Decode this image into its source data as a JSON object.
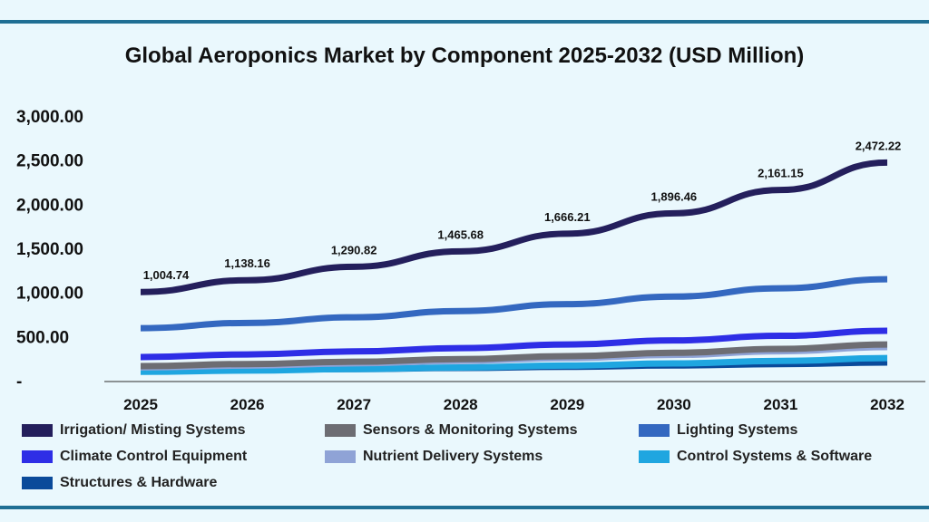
{
  "title": "Global Aeroponics Market by Component 2025-2032 (USD Million)",
  "chart_data": {
    "type": "line",
    "title": "Global Aeroponics Market by Component 2025-2032 (USD Million)",
    "categories": [
      "2025",
      "2026",
      "2027",
      "2028",
      "2029",
      "2030",
      "2031",
      "2032"
    ],
    "yticks": [
      "-",
      "500.00",
      "1,000.00",
      "1,500.00",
      "2,000.00",
      "2,500.00",
      "3,000.00"
    ],
    "ylim": [
      0,
      3000
    ],
    "grid": false,
    "legend": "bottom",
    "series": [
      {
        "name": "Irrigation/ Misting Systems",
        "color": "#241f5c",
        "values": [
          1004.74,
          1138.16,
          1290.82,
          1465.68,
          1666.21,
          1896.46,
          2161.15,
          2472.22
        ],
        "labels": [
          "1,004.74",
          "1,138.16",
          "1,290.82",
          "1,465.68",
          "1,666.21",
          "1,896.46",
          "2,161.15",
          "2,472.22"
        ]
      },
      {
        "name": "Sensors & Monitoring Systems",
        "color": "#6d6d73",
        "values": [
          165,
          188,
          214,
          244,
          278,
          316,
          360,
          410
        ]
      },
      {
        "name": "Lighting Systems",
        "color": "#3468c0",
        "values": [
          595,
          654,
          718,
          789,
          867,
          953,
          1047,
          1150
        ]
      },
      {
        "name": "Climate Control Equipment",
        "color": "#2e2ee6",
        "values": [
          267,
          297,
          331,
          368,
          410,
          456,
          508,
          565
        ]
      },
      {
        "name": "Nutrient Delivery Systems",
        "color": "#8fa3d6",
        "values": [
          150,
          171,
          196,
          224,
          255,
          291,
          333,
          380
        ]
      },
      {
        "name": "Control Systems & Software",
        "color": "#1fa6e0",
        "values": [
          100,
          114,
          131,
          149,
          171,
          195,
          223,
          255
        ]
      },
      {
        "name": "Structures & Hardware",
        "color": "#0a4a9a",
        "values": [
          110,
          120,
          131,
          144,
          157,
          172,
          188,
          205
        ]
      }
    ]
  }
}
